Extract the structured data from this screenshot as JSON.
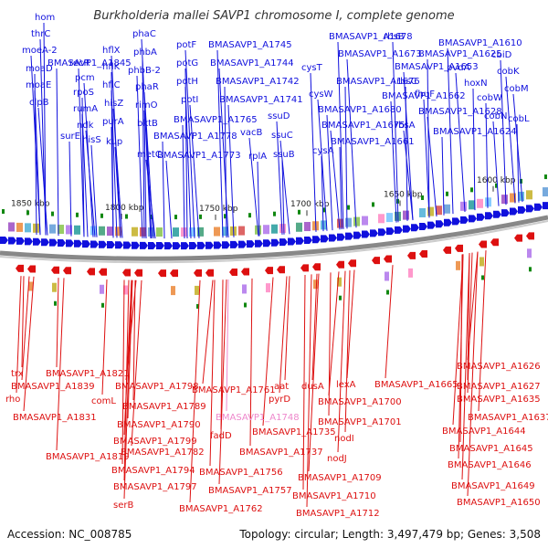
{
  "title": "Burkholderia mallei SAVP1 chromosome I, complete genome",
  "footer": {
    "accession": "Accession: NC_008785",
    "stats": "Topology: circular; Length: 3,497,479 bp; Genes: 3,508"
  },
  "colors": {
    "forward": "#1010dd",
    "reverse": "#dd1010",
    "highlight": "#ee88cc",
    "backbone": "#888888",
    "tick": "#118811"
  },
  "ticks": [
    "1850 kbp",
    "1800 kbp",
    "1750 kbp",
    "1700 kbp",
    "1650 kbp",
    "1600 kbp"
  ],
  "top_labels": [
    "hom",
    "thrC",
    "moeA-2",
    "moaD",
    "moaE",
    "clpB",
    "BMASAVP1_A1845",
    "recR",
    "pcm",
    "rpoS",
    "rumA",
    "ndk",
    "surE",
    "hisS",
    "hflX",
    "hflK",
    "hflC",
    "hisZ",
    "purA",
    "kup",
    "phaC",
    "phbA",
    "phbB-2",
    "phaR",
    "rimO",
    "bktB",
    "metC",
    "BMASAVP1_A1778",
    "BMASAVP1_A1773",
    "potF",
    "potG",
    "potH",
    "potI",
    "BMASAVP1_A1765",
    "BMASAVP1_A1745",
    "BMASAVP1_A1744",
    "BMASAVP1_A1742",
    "BMASAVP1_A1741",
    "vacB",
    "rplA",
    "ssuD",
    "ssuC",
    "ssuB",
    "cysT",
    "cysW",
    "cysA",
    "BMASAVP1_A1678",
    "BMASAVP1_A1673",
    "BMASAVP1_A1676",
    "BMASAVP1_A1680",
    "BMASAVP1_A1675",
    "BMASAVP1_A1661",
    "rbsB",
    "BMASAVP1_A1653",
    "rbsC",
    "BMASAVP1_A1662",
    "rbsA",
    "BMASAVP1_A1625",
    "fhuF",
    "BMASAVP1_A1628",
    "BMASAVP1_A1624",
    "BMASAVP1_A1610",
    "pvdA",
    "hoxN",
    "cbiD",
    "cobK",
    "cobW",
    "cobN",
    "cobM",
    "cobL"
  ],
  "bottom_labels": [
    "trx",
    "rho",
    "BMASAVP1_A1839",
    "BMASAVP1_A1831",
    "BMASAVP1_A1821",
    "comL",
    "BMASAVP1_A1819",
    "BMASAVP1_A1798",
    "BMASAVP1_A1789",
    "BMASAVP1_A1790",
    "BMASAVP1_A1799",
    "BMASAVP1_A1782",
    "BMASAVP1_A1794",
    "BMASAVP1_A1797",
    "serB",
    "BMASAVP1_A1761",
    "fadD",
    "BMASAVP1_A1756",
    "BMASAVP1_A1757",
    "BMASAVP1_A1762",
    "BMASAVP1_A1748",
    "aat",
    "pyrD",
    "BMASAVP1_A1735",
    "BMASAVP1_A1737",
    "dusA",
    "lexA",
    "BMASAVP1_A1700",
    "BMASAVP1_A1701",
    "nodI",
    "nodJ",
    "BMASAVP1_A1709",
    "BMASAVP1_A1710",
    "BMASAVP1_A1712",
    "BMASAVP1_A1665",
    "BMASAVP1_A1626",
    "BMASAVP1_A1627",
    "BMASAVP1_A1635",
    "BMASAVP1_A1637",
    "BMASAVP1_A1644",
    "BMASAVP1_A1645",
    "BMASAVP1_A1646",
    "BMASAVP1_A1649",
    "BMASAVP1_A1650"
  ]
}
